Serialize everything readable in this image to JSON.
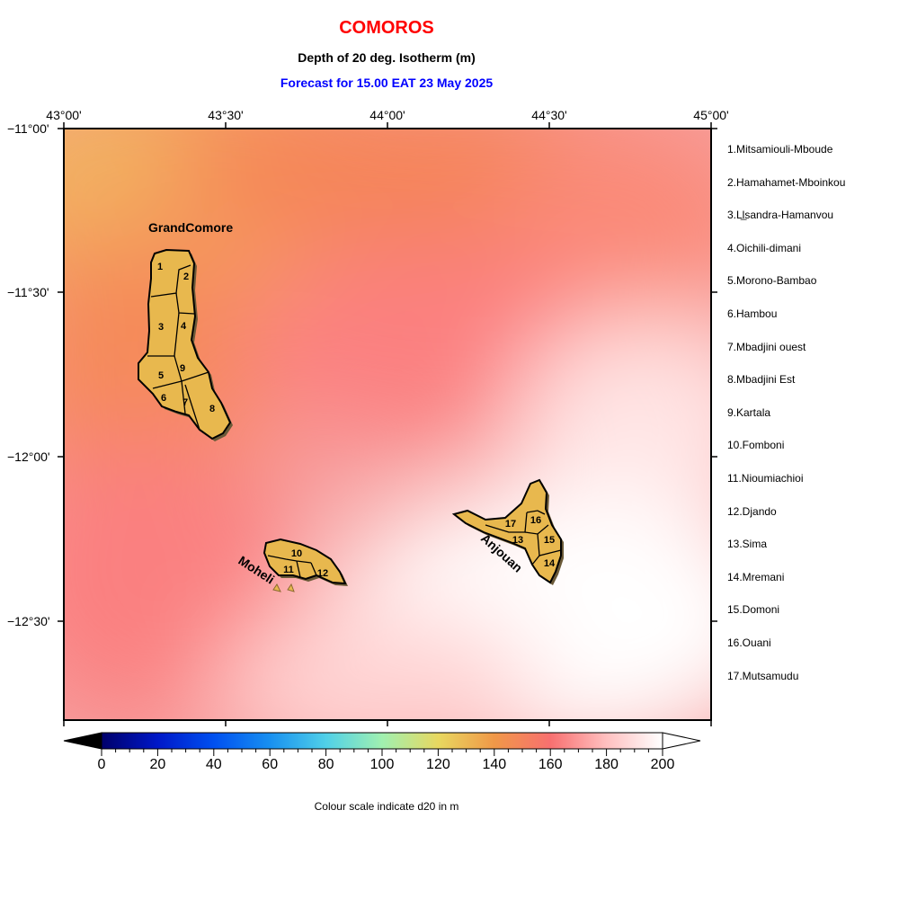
{
  "header": {
    "title": "COMOROS",
    "subtitle": "Depth of 20 deg. Isotherm (m)",
    "forecast": "Forecast for  15.00 EAT 23 May 2025"
  },
  "axes": {
    "lon_labels": [
      "43°00'",
      "43°30'",
      "44°00'",
      "44°30'",
      "45°00'"
    ],
    "lat_labels": [
      "−11°00'",
      "−11°30'",
      "−12°00'",
      "−12°30'"
    ]
  },
  "islands": {
    "grand_comore": "GrandComore",
    "moheli": "Moheli",
    "anjouan": "Anjouan"
  },
  "district_numbers": [
    "1",
    "2",
    "3",
    "4",
    "5",
    "6",
    "7",
    "8",
    "9",
    "10",
    "11",
    "12",
    "13",
    "14",
    "15",
    "16",
    "17"
  ],
  "districts": [
    "1.Mitsamiouli-Mboude",
    "2.Hamahamet-Mboinkou",
    "3.Ll̲sandra-Hamanvou",
    "4.Oichili-dimani",
    "5.Morono-Bambao",
    "6.Hambou",
    "7.Mbadjini ouest",
    "8.Mbadjini Est",
    "9.Kartala",
    "10.Fomboni",
    "11.Nioumiachioi",
    "12.Djando",
    "13.Sima",
    "14.Mremani",
    "15.Domoni",
    "16.Ouani",
    "17.Mutsamudu"
  ],
  "colorbar": {
    "ticks": [
      "0",
      "20",
      "40",
      "60",
      "80",
      "100",
      "120",
      "140",
      "160",
      "180",
      "200"
    ],
    "caption": "Colour scale indicate d20 in m",
    "stops": [
      "#000000",
      "#00007f",
      "#0000ff",
      "#0060ff",
      "#30b0f0",
      "#80e8c0",
      "#e8e070",
      "#f0b050",
      "#f08050",
      "#ff8080",
      "#ffc8c8",
      "#ffffff"
    ]
  },
  "colors": {
    "land": "#e8b84e",
    "coast": "#000000",
    "title": "#ff0000",
    "forecast": "#0000ff"
  }
}
